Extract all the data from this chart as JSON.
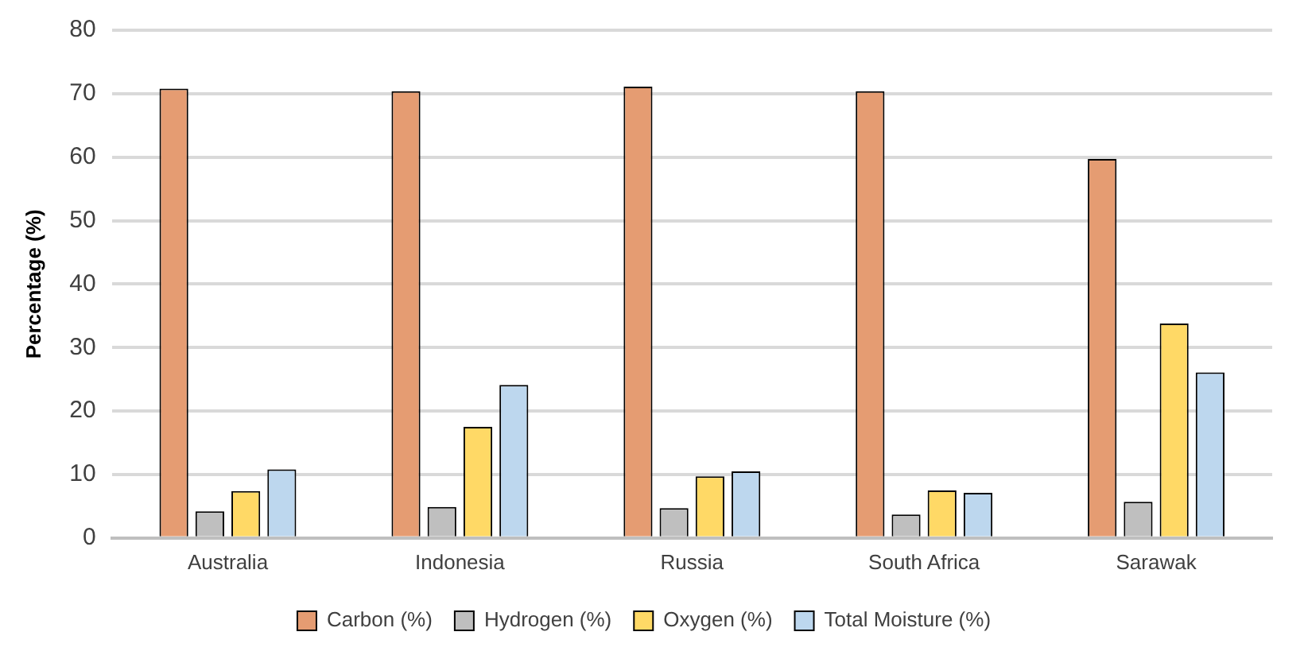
{
  "chart_data": {
    "type": "bar",
    "ylabel": "Percentage (%)",
    "categories": [
      "Australia",
      "Indonesia",
      "Russia",
      "South Africa",
      "Sarawak"
    ],
    "series": [
      {
        "name": "Carbon (%)",
        "color": "#e59c72",
        "values": [
          70.8,
          70.4,
          71.1,
          70.4,
          59.7
        ]
      },
      {
        "name": "Hydrogen (%)",
        "color": "#bfbfbf",
        "values": [
          4.2,
          4.9,
          4.7,
          3.7,
          5.7
        ]
      },
      {
        "name": "Oxygen (%)",
        "color": "#ffd966",
        "values": [
          7.4,
          17.5,
          9.7,
          7.5,
          33.8
        ]
      },
      {
        "name": "Total Moisture (%)",
        "color": "#bdd7ee",
        "values": [
          10.8,
          24.1,
          10.5,
          7.1,
          26.1
        ]
      }
    ],
    "ylim": [
      0,
      80
    ],
    "yticks": [
      0,
      10,
      20,
      30,
      40,
      50,
      60,
      70,
      80
    ],
    "grid": "y",
    "legend": "bottom"
  }
}
